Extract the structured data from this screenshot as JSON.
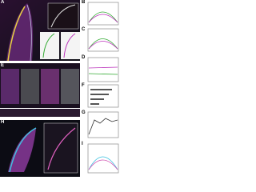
{
  "panels": [
    {
      "letter": "A"
    },
    {
      "letter": "B"
    },
    {
      "letter": "C"
    },
    {
      "letter": "D"
    },
    {
      "letter": "E"
    },
    {
      "letter": "F"
    },
    {
      "letter": "G"
    },
    {
      "letter": "H"
    },
    {
      "letter": "I"
    }
  ]
}
